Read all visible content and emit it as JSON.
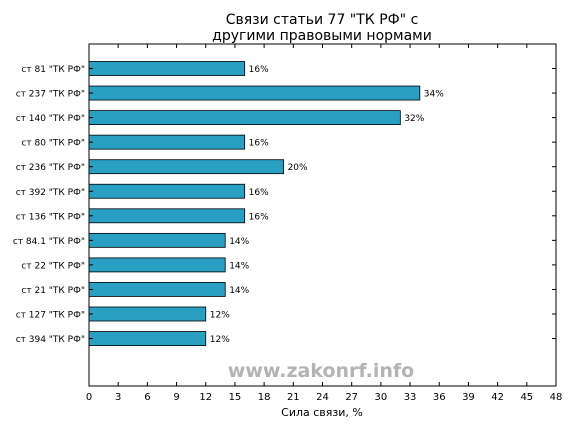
{
  "chart_data": {
    "type": "bar",
    "orientation": "horizontal",
    "title": "Связи статьи 77 \"ТК РФ\" с\nдругими правовыми нормами",
    "xlabel": "Сила связи, %",
    "ylabel": "",
    "xlim": [
      0,
      48
    ],
    "xticks": [
      0,
      3,
      6,
      9,
      12,
      15,
      18,
      21,
      24,
      27,
      30,
      33,
      36,
      39,
      42,
      45,
      48
    ],
    "grid": false,
    "legend": "none",
    "bar_color": "#2a9fc4",
    "categories": [
      "ст 81 \"ТК РФ\"",
      "ст 237 \"ТК РФ\"",
      "ст 140 \"ТК РФ\"",
      "ст 80 \"ТК РФ\"",
      "ст 236 \"ТК РФ\"",
      "ст 392 \"ТК РФ\"",
      "ст 136 \"ТК РФ\"",
      "ст 84.1 \"ТК РФ\"",
      "ст 22 \"ТК РФ\"",
      "ст 21 \"ТК РФ\"",
      "ст 127 \"ТК РФ\"",
      "ст 394 \"ТК РФ\""
    ],
    "values": [
      16,
      34,
      32,
      16,
      20,
      16,
      16,
      14,
      14,
      14,
      12,
      12
    ],
    "value_labels": [
      "16%",
      "34%",
      "32%",
      "16%",
      "20%",
      "16%",
      "16%",
      "14%",
      "14%",
      "14%",
      "12%",
      "12%"
    ]
  },
  "watermark": "www.zakonrf.info"
}
